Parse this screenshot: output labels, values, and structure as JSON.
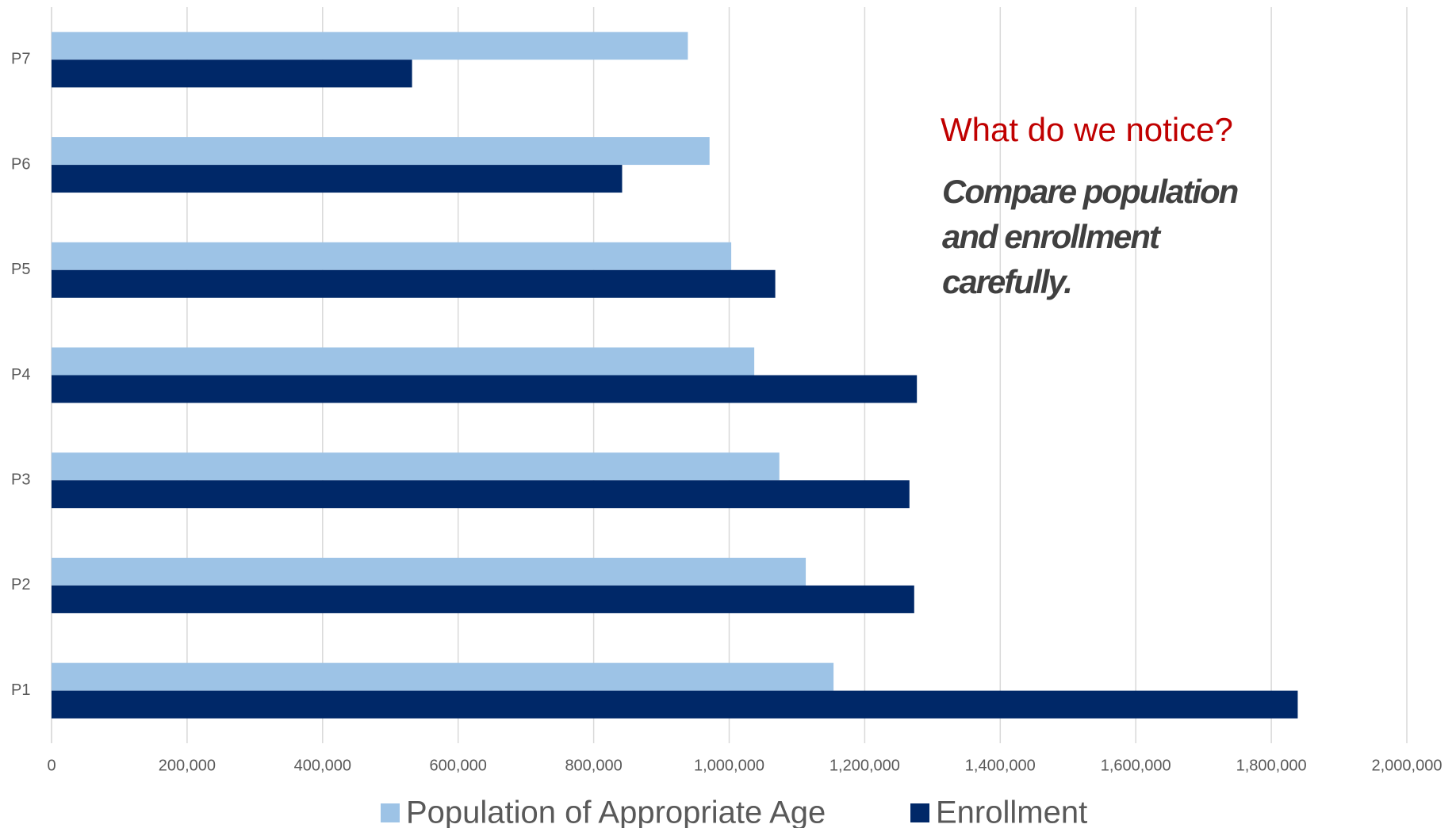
{
  "chart_data": {
    "type": "hbar",
    "categories": [
      "P1",
      "P2",
      "P3",
      "P4",
      "P5",
      "P6",
      "P7"
    ],
    "series": [
      {
        "name": "Population of Appropriate Age",
        "color": "#9dc3e6",
        "values": [
          1154000,
          1113000,
          1074000,
          1037000,
          1003000,
          971000,
          939000
        ]
      },
      {
        "name": "Enrollment",
        "color": "#002868",
        "values": [
          1839000,
          1273000,
          1266000,
          1277000,
          1068000,
          842000,
          532000
        ]
      }
    ],
    "xlim": [
      0,
      2000000
    ],
    "xticks": [
      0,
      {
        "value": 200000,
        "label": "200,000"
      },
      {
        "value": 400000,
        "label": "400,000"
      },
      {
        "value": 600000,
        "label": "600,000"
      },
      {
        "value": 800000,
        "label": "800,000"
      },
      {
        "value": 1000000,
        "label": "1,000,000"
      },
      {
        "value": 1200000,
        "label": "1,200,000"
      },
      {
        "value": 1400000,
        "label": "1,400,000"
      },
      {
        "value": 1600000,
        "label": "1,600,000"
      },
      {
        "value": 1800000,
        "label": "1,800,000"
      },
      {
        "value": 2000000,
        "label": "2,000,000"
      }
    ],
    "grid": true,
    "legend": "bottom",
    "annotations": [
      {
        "text": "What do we notice?",
        "color": "#c00000"
      },
      {
        "lines": [
          "Compare population",
          "and enrollment",
          "carefully."
        ],
        "color": "#404040"
      }
    ]
  }
}
